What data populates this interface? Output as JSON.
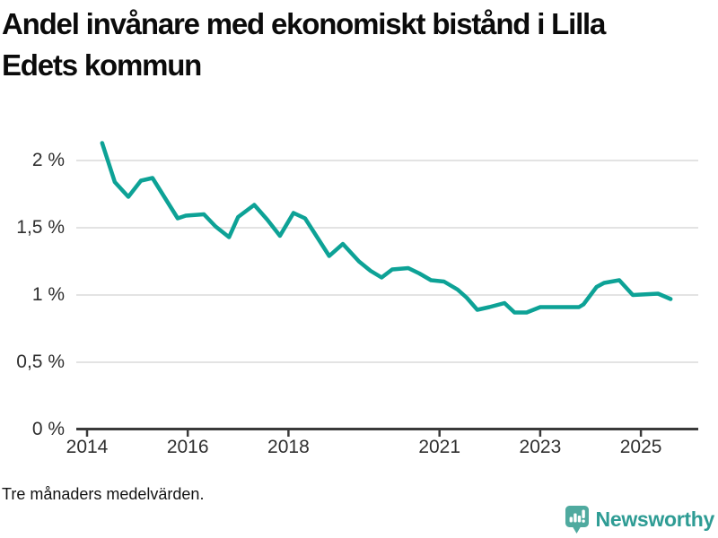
{
  "header": {
    "title": "Andel invånare med ekonomiskt bistånd i Lilla Edets kommun",
    "title_lines": [
      "Andel invånare med ekonomiskt bistånd i Lilla",
      "Edets kommun"
    ]
  },
  "footer": {
    "note": "Tre månaders medelvärden.",
    "brand": {
      "name": "Newsworthy",
      "icon": "newsworthy-barchart-speech-bubble-icon",
      "text_color": "#2e9c94",
      "icon_bg_color": "#4faa9f"
    }
  },
  "chart_data": {
    "type": "line",
    "title": "Andel invånare med ekonomiskt bistånd i Lilla Edets kommun",
    "subtitle": "Tre månaders medelvärden.",
    "xlabel": "",
    "ylabel": "",
    "grid": "horizontal",
    "legend_position": "none",
    "xlim": [
      2013.8,
      2026.1
    ],
    "ylim": [
      0,
      2.25
    ],
    "x_ticks": [
      {
        "value": 2014,
        "label": "2014"
      },
      {
        "value": 2016,
        "label": "2016"
      },
      {
        "value": 2018,
        "label": "2018"
      },
      {
        "value": 2021,
        "label": "2021"
      },
      {
        "value": 2023,
        "label": "2023"
      },
      {
        "value": 2025,
        "label": "2025"
      }
    ],
    "y_ticks": [
      {
        "value": 2,
        "label": "2 %"
      },
      {
        "value": 1.5,
        "label": "1,5 %"
      },
      {
        "value": 1,
        "label": "1 %"
      },
      {
        "value": 0.5,
        "label": "0,5 %"
      },
      {
        "value": 0,
        "label": "0 %"
      }
    ],
    "colors": {
      "line": "#0da296",
      "grid": "#e3e3e3",
      "axis": "#3a3a3a",
      "tick_text": "#2f2f2f"
    },
    "series": [
      {
        "name": "Andel invånare med ekonomiskt bistånd",
        "unit": "%",
        "color": "#0da296",
        "points": [
          [
            2014.3,
            2.13
          ],
          [
            2014.55,
            1.84
          ],
          [
            2014.82,
            1.73
          ],
          [
            2015.07,
            1.85
          ],
          [
            2015.3,
            1.87
          ],
          [
            2015.8,
            1.57
          ],
          [
            2015.96,
            1.59
          ],
          [
            2016.32,
            1.6
          ],
          [
            2016.55,
            1.51
          ],
          [
            2016.82,
            1.43
          ],
          [
            2017.0,
            1.58
          ],
          [
            2017.32,
            1.67
          ],
          [
            2017.58,
            1.56
          ],
          [
            2017.83,
            1.44
          ],
          [
            2018.1,
            1.61
          ],
          [
            2018.33,
            1.57
          ],
          [
            2018.81,
            1.29
          ],
          [
            2019.08,
            1.38
          ],
          [
            2019.4,
            1.25
          ],
          [
            2019.63,
            1.18
          ],
          [
            2019.85,
            1.13
          ],
          [
            2020.06,
            1.19
          ],
          [
            2020.38,
            1.2
          ],
          [
            2020.6,
            1.16
          ],
          [
            2020.83,
            1.11
          ],
          [
            2021.09,
            1.1
          ],
          [
            2021.36,
            1.04
          ],
          [
            2021.54,
            0.98
          ],
          [
            2021.75,
            0.89
          ],
          [
            2021.99,
            0.91
          ],
          [
            2022.29,
            0.94
          ],
          [
            2022.49,
            0.87
          ],
          [
            2022.73,
            0.87
          ],
          [
            2023.0,
            0.91
          ],
          [
            2023.77,
            0.91
          ],
          [
            2023.86,
            0.93
          ],
          [
            2024.12,
            1.06
          ],
          [
            2024.27,
            1.09
          ],
          [
            2024.57,
            1.11
          ],
          [
            2024.84,
            1.0
          ],
          [
            2025.34,
            1.01
          ],
          [
            2025.59,
            0.97
          ]
        ]
      }
    ]
  }
}
